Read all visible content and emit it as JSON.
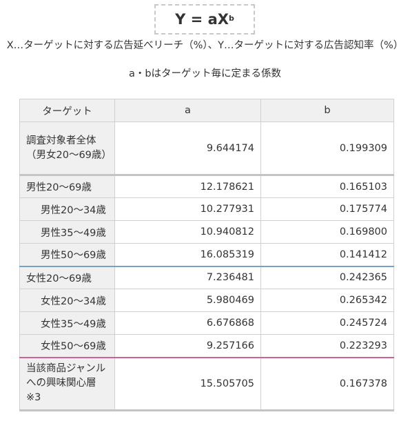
{
  "formula": {
    "main": "Y = aX",
    "superscript": "b"
  },
  "description": {
    "line1": "X…ターゲットに対する広告延べリーチ（%）、Y…ターゲットに対する広告認知率（%）",
    "line2": "a・bはターゲット毎に定まる係数"
  },
  "table": {
    "headers": [
      "ターゲット",
      "a",
      "b"
    ],
    "rows": [
      {
        "target": "調査対象者全体（男女20～69歳）",
        "a": "9.644174",
        "b": "0.199309"
      },
      {
        "target": "男性20～69歳",
        "a": "12.178621",
        "b": "0.165103"
      },
      {
        "target": "男性20～34歳",
        "a": "10.277931",
        "b": "0.175774"
      },
      {
        "target": "男性35～49歳",
        "a": "10.940812",
        "b": "0.169800"
      },
      {
        "target": "男性50～69歳",
        "a": "16.085319",
        "b": "0.141412"
      },
      {
        "target": "女性20～69歳",
        "a": "7.236481",
        "b": "0.242365"
      },
      {
        "target": "女性20～34歳",
        "a": "5.980469",
        "b": "0.265342"
      },
      {
        "target": "女性35～49歳",
        "a": "6.676868",
        "b": "0.245724"
      },
      {
        "target": "女性50～69歳",
        "a": "9.257166",
        "b": "0.223293"
      },
      {
        "target": "当該商品ジャンルへの興味関心層※3",
        "a": "15.505705",
        "b": "0.167378"
      }
    ]
  }
}
